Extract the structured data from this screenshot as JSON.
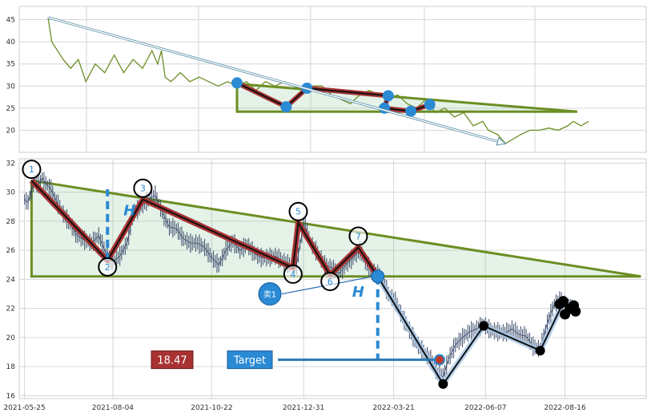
{
  "chart_data": [
    {
      "type": "line",
      "panel": "overview",
      "ylim": [
        15,
        48
      ],
      "yticks": [
        20,
        25,
        30,
        35,
        40,
        45
      ],
      "grid": true,
      "line_color": "#6b8e23",
      "price": [
        [
          0,
          45.5
        ],
        [
          2,
          40
        ],
        [
          5,
          38
        ],
        [
          8,
          36
        ],
        [
          12,
          34
        ],
        [
          16,
          36
        ],
        [
          20,
          31
        ],
        [
          25,
          35
        ],
        [
          30,
          33
        ],
        [
          35,
          37
        ],
        [
          40,
          33
        ],
        [
          45,
          36
        ],
        [
          50,
          34
        ],
        [
          55,
          38
        ],
        [
          58,
          35
        ],
        [
          60,
          38
        ],
        [
          62,
          32
        ],
        [
          65,
          31
        ],
        [
          70,
          33
        ],
        [
          75,
          31
        ],
        [
          80,
          32
        ],
        [
          85,
          31
        ],
        [
          90,
          30
        ],
        [
          95,
          31
        ],
        [
          100,
          30
        ],
        [
          105,
          31
        ],
        [
          110,
          29
        ],
        [
          115,
          31
        ],
        [
          120,
          30
        ],
        [
          125,
          31
        ],
        [
          130,
          30
        ],
        [
          135,
          29
        ],
        [
          140,
          30
        ],
        [
          145,
          30
        ],
        [
          150,
          28
        ],
        [
          155,
          27
        ],
        [
          160,
          26
        ],
        [
          165,
          28
        ],
        [
          170,
          29
        ],
        [
          175,
          28
        ],
        [
          180,
          27
        ],
        [
          185,
          28
        ],
        [
          190,
          26
        ],
        [
          195,
          25
        ],
        [
          200,
          27
        ],
        [
          205,
          24
        ],
        [
          210,
          25
        ],
        [
          215,
          23
        ],
        [
          220,
          24
        ],
        [
          225,
          21
        ],
        [
          230,
          22
        ],
        [
          233,
          20
        ],
        [
          238,
          19
        ],
        [
          242,
          17
        ],
        [
          246,
          18
        ],
        [
          250,
          19
        ],
        [
          255,
          20
        ],
        [
          260,
          20
        ],
        [
          265,
          20.5
        ],
        [
          270,
          20
        ],
        [
          275,
          21
        ],
        [
          278,
          22
        ],
        [
          282,
          21
        ],
        [
          286,
          22
        ]
      ],
      "trend_arrow": {
        "from": [
          0,
          45.5
        ],
        "to": [
          242,
          17
        ]
      },
      "pattern": {
        "top_start": [
          100,
          30.5
        ],
        "top_end": [
          280,
          24.2
        ],
        "neckline": 24.2,
        "box_x": [
          100,
          280
        ]
      },
      "pattern_points": [
        [
          100,
          30.7
        ],
        [
          126,
          25.3
        ],
        [
          137,
          29.5
        ],
        [
          180,
          27.8
        ],
        [
          178,
          25
        ],
        [
          192,
          24.3
        ],
        [
          202,
          25.8
        ]
      ]
    },
    {
      "type": "line",
      "panel": "detail",
      "ylim": [
        15.8,
        32.3
      ],
      "yticks": [
        16,
        18,
        20,
        22,
        24,
        26,
        28,
        30,
        32
      ],
      "xticks": [
        {
          "x": 0,
          "label": "2021-05-25"
        },
        {
          "x": 50,
          "label": "2021-08-04"
        },
        {
          "x": 106,
          "label": "2021-10-22"
        },
        {
          "x": 158,
          "label": "2021-12-31"
        },
        {
          "x": 209,
          "label": "2022-03-21"
        },
        {
          "x": 261,
          "label": "2022-06-07"
        },
        {
          "x": 306,
          "label": "2022-08-16"
        }
      ],
      "xlim": [
        -3,
        352
      ],
      "grid": true,
      "price": [
        [
          0,
          29.5
        ],
        [
          2,
          29.3
        ],
        [
          4,
          30.2
        ],
        [
          6,
          30.8
        ],
        [
          8,
          30.5
        ],
        [
          10,
          31
        ],
        [
          12,
          30.6
        ],
        [
          15,
          30.2
        ],
        [
          18,
          29.4
        ],
        [
          22,
          28.5
        ],
        [
          26,
          27.8
        ],
        [
          30,
          27
        ],
        [
          34,
          26.7
        ],
        [
          38,
          26.5
        ],
        [
          42,
          27
        ],
        [
          46,
          25.8
        ],
        [
          50,
          25.2
        ],
        [
          54,
          25.6
        ],
        [
          58,
          26.5
        ],
        [
          62,
          28.6
        ],
        [
          66,
          29
        ],
        [
          70,
          29.5
        ],
        [
          74,
          29.8
        ],
        [
          78,
          28.6
        ],
        [
          82,
          27.6
        ],
        [
          86,
          27.5
        ],
        [
          90,
          26.8
        ],
        [
          94,
          26.5
        ],
        [
          98,
          26.5
        ],
        [
          102,
          26.2
        ],
        [
          106,
          25.5
        ],
        [
          110,
          25
        ],
        [
          114,
          26
        ],
        [
          118,
          26.6
        ],
        [
          122,
          26
        ],
        [
          126,
          26.4
        ],
        [
          130,
          25.8
        ],
        [
          134,
          25.5
        ],
        [
          138,
          25.5
        ],
        [
          142,
          25.6
        ],
        [
          146,
          25.3
        ],
        [
          150,
          25
        ],
        [
          154,
          25
        ],
        [
          158,
          27.8
        ],
        [
          160,
          27.3
        ],
        [
          162,
          26.5
        ],
        [
          166,
          25.8
        ],
        [
          170,
          25
        ],
        [
          174,
          24.8
        ],
        [
          178,
          24.4
        ],
        [
          182,
          25
        ],
        [
          186,
          25.5
        ],
        [
          190,
          26
        ],
        [
          194,
          25
        ],
        [
          198,
          24.5
        ],
        [
          202,
          24.2
        ],
        [
          206,
          23
        ],
        [
          210,
          22.5
        ],
        [
          214,
          21.4
        ],
        [
          218,
          20.5
        ],
        [
          222,
          19.6
        ],
        [
          226,
          19
        ],
        [
          230,
          18.5
        ],
        [
          234,
          17.5
        ],
        [
          237,
          17.3
        ],
        [
          240,
          18.5
        ],
        [
          244,
          19.5
        ],
        [
          248,
          20
        ],
        [
          252,
          20.4
        ],
        [
          256,
          20.6
        ],
        [
          260,
          20.9
        ],
        [
          264,
          20.5
        ],
        [
          268,
          20.4
        ],
        [
          272,
          20.3
        ],
        [
          276,
          20.6
        ],
        [
          280,
          20.2
        ],
        [
          284,
          20.1
        ],
        [
          288,
          19.4
        ],
        [
          292,
          19.2
        ],
        [
          296,
          21
        ],
        [
          300,
          22.3
        ],
        [
          304,
          22.6
        ],
        [
          308,
          22
        ],
        [
          311,
          22.4
        ]
      ],
      "markers": [
        {
          "label": "1",
          "x": 4,
          "y": 30.8
        },
        {
          "label": "2",
          "x": 47,
          "y": 25.3
        },
        {
          "label": "3",
          "x": 67,
          "y": 29.5
        },
        {
          "label": "4",
          "x": 152,
          "y": 24.8
        },
        {
          "label": "5",
          "x": 155,
          "y": 27.9
        },
        {
          "label": "6",
          "x": 173,
          "y": 24.3
        },
        {
          "label": "7",
          "x": 189,
          "y": 26.2
        }
      ],
      "sell_point": {
        "label": "卖1",
        "x": 200,
        "y": 24.2
      },
      "neckline": 24.2,
      "resistance": {
        "from": [
          4,
          30.8
        ],
        "to": [
          349,
          24.2
        ]
      },
      "h_height_label": "H",
      "target": {
        "label": "Target",
        "value_label": "18.47",
        "value": 18.47,
        "x_reach": 235
      },
      "decline_path": [
        [
          200,
          24.2
        ],
        [
          237,
          16.8
        ],
        [
          260,
          20.8
        ],
        [
          292,
          19.1
        ],
        [
          305,
          22.4
        ]
      ],
      "cluster_points": [
        [
          303,
          22.3
        ],
        [
          305,
          22.5
        ],
        [
          306,
          21.6
        ],
        [
          309,
          22
        ],
        [
          311,
          22.2
        ],
        [
          312,
          21.8
        ]
      ]
    }
  ]
}
